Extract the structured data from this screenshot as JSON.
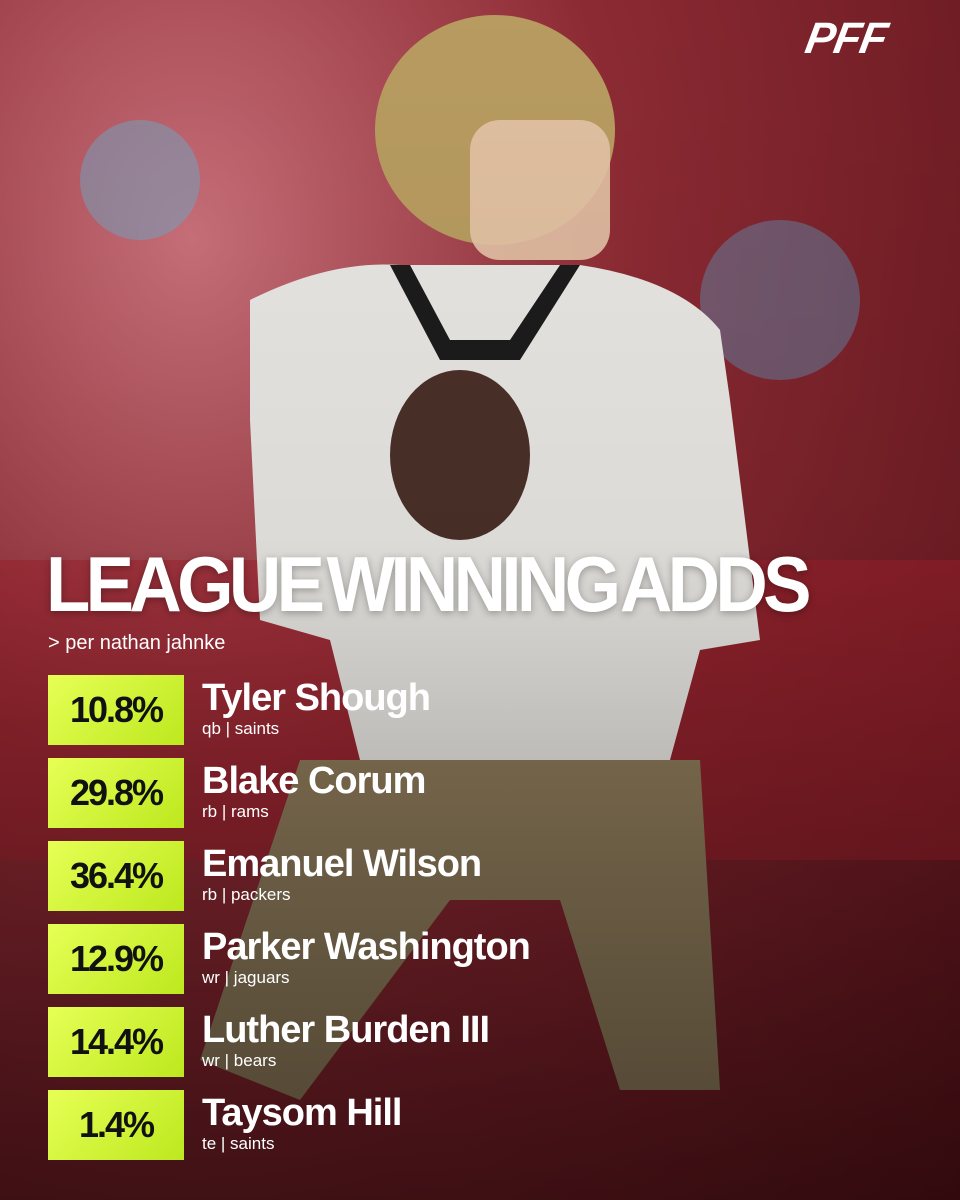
{
  "logo": "PFF",
  "title": "LEAGUE WINNING ADDS",
  "subtitle": "> per nathan jahnke",
  "players": [
    {
      "pct": "10.8%",
      "name": "Tyler Shough",
      "meta": "qb | saints"
    },
    {
      "pct": "29.8%",
      "name": "Blake Corum",
      "meta": "rb | rams"
    },
    {
      "pct": "36.4%",
      "name": "Emanuel Wilson",
      "meta": "rb | packers"
    },
    {
      "pct": "12.9%",
      "name": "Parker Washington",
      "meta": "wr | jaguars"
    },
    {
      "pct": "14.4%",
      "name": "Luther Burden III",
      "meta": "wr | bears"
    },
    {
      "pct": "1.4%",
      "name": "Taysom Hill",
      "meta": "te | saints"
    }
  ]
}
